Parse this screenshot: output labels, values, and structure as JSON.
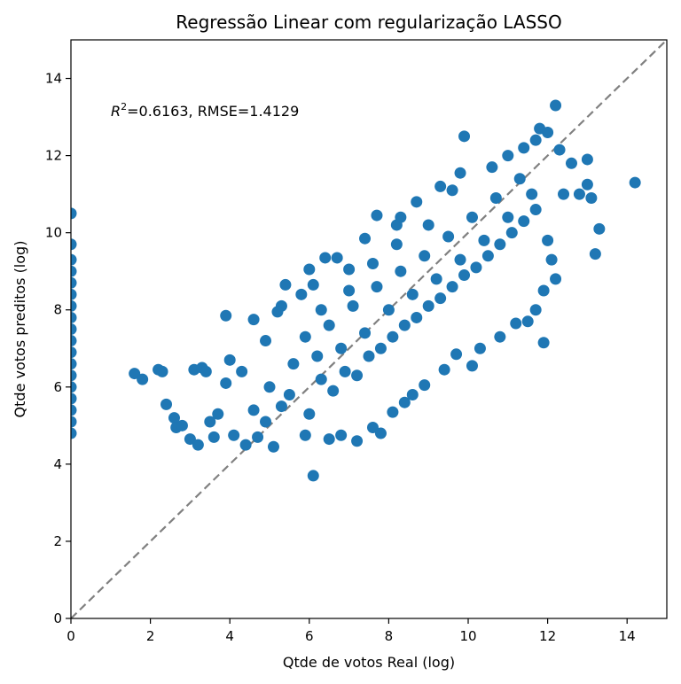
{
  "chart_data": {
    "type": "scatter",
    "title": "Regressão Linear com regularização LASSO",
    "xlabel": "Qtde de votos Real (log)",
    "ylabel": "Qtde votos preditos (log)",
    "xlim": [
      0,
      15
    ],
    "ylim": [
      0,
      15
    ],
    "xticks": [
      0,
      2,
      4,
      6,
      8,
      10,
      12,
      14
    ],
    "yticks": [
      0,
      2,
      4,
      6,
      8,
      10,
      12,
      14
    ],
    "xtick_labels": [
      "0",
      "2",
      "4",
      "6",
      "8",
      "10",
      "12",
      "14"
    ],
    "ytick_labels": [
      "0",
      "2",
      "4",
      "6",
      "8",
      "10",
      "12",
      "14"
    ],
    "grid": false,
    "marker_color": "#1f77b4",
    "reference_line": {
      "from": [
        0,
        0
      ],
      "to": [
        15,
        15
      ],
      "color": "#808080",
      "style": "dashed"
    },
    "annotation": {
      "r2_symbol": "R",
      "r2_exponent": "2",
      "text": "=0.6163, RMSE=1.4129"
    },
    "series": [
      {
        "points": [
          [
            0,
            10.5
          ],
          [
            0,
            9.7
          ],
          [
            0,
            9.3
          ],
          [
            0,
            9.0
          ],
          [
            0,
            8.7
          ],
          [
            0,
            8.4
          ],
          [
            0,
            8.1
          ],
          [
            0,
            7.8
          ],
          [
            0,
            7.5
          ],
          [
            0,
            7.2
          ],
          [
            0,
            6.9
          ],
          [
            0,
            6.6
          ],
          [
            0,
            6.3
          ],
          [
            0,
            6.0
          ],
          [
            0,
            5.7
          ],
          [
            0,
            5.4
          ],
          [
            0,
            5.1
          ],
          [
            0,
            4.8
          ],
          [
            1.6,
            6.35
          ],
          [
            1.8,
            6.2
          ],
          [
            2.2,
            6.45
          ],
          [
            2.3,
            6.4
          ],
          [
            2.4,
            5.55
          ],
          [
            2.6,
            5.2
          ],
          [
            2.65,
            4.95
          ],
          [
            2.8,
            5.0
          ],
          [
            3.0,
            4.65
          ],
          [
            3.1,
            6.45
          ],
          [
            3.2,
            4.5
          ],
          [
            3.3,
            6.5
          ],
          [
            3.4,
            6.4
          ],
          [
            3.5,
            5.1
          ],
          [
            3.6,
            4.7
          ],
          [
            3.7,
            5.3
          ],
          [
            3.9,
            6.1
          ],
          [
            4.0,
            6.7
          ],
          [
            4.1,
            4.75
          ],
          [
            4.3,
            6.4
          ],
          [
            4.4,
            4.5
          ],
          [
            4.6,
            5.4
          ],
          [
            4.7,
            4.7
          ],
          [
            4.9,
            5.1
          ],
          [
            3.9,
            7.85
          ],
          [
            4.6,
            7.75
          ],
          [
            4.9,
            7.2
          ],
          [
            5.1,
            4.45
          ],
          [
            5.3,
            8.1
          ],
          [
            5.2,
            7.95
          ],
          [
            5.4,
            8.65
          ],
          [
            5.8,
            8.4
          ],
          [
            5.9,
            4.75
          ],
          [
            6.1,
            3.7
          ],
          [
            6.0,
            9.05
          ],
          [
            6.1,
            8.65
          ],
          [
            6.4,
            9.35
          ],
          [
            6.5,
            4.65
          ],
          [
            6.7,
            9.35
          ],
          [
            6.8,
            4.75
          ],
          [
            7.0,
            9.05
          ],
          [
            7.2,
            4.6
          ],
          [
            7.4,
            9.85
          ],
          [
            7.6,
            4.95
          ],
          [
            7.7,
            10.45
          ],
          [
            7.8,
            4.8
          ],
          [
            8.2,
            10.2
          ],
          [
            8.1,
            5.35
          ],
          [
            8.3,
            10.4
          ],
          [
            8.4,
            5.6
          ],
          [
            8.7,
            10.8
          ],
          [
            8.6,
            5.8
          ],
          [
            9.0,
            10.2
          ],
          [
            8.9,
            6.05
          ],
          [
            9.3,
            11.2
          ],
          [
            9.4,
            6.45
          ],
          [
            9.6,
            11.1
          ],
          [
            9.8,
            11.55
          ],
          [
            9.9,
            12.5
          ],
          [
            9.7,
            6.85
          ],
          [
            10.1,
            6.55
          ],
          [
            10.3,
            7.0
          ],
          [
            10.6,
            11.7
          ],
          [
            10.8,
            7.3
          ],
          [
            11.0,
            12.0
          ],
          [
            11.2,
            7.65
          ],
          [
            11.4,
            12.2
          ],
          [
            11.5,
            7.7
          ],
          [
            11.7,
            12.4
          ],
          [
            11.8,
            12.7
          ],
          [
            12.0,
            12.6
          ],
          [
            12.2,
            13.3
          ],
          [
            11.9,
            8.5
          ],
          [
            12.1,
            9.3
          ],
          [
            12.2,
            8.8
          ],
          [
            12.4,
            11.0
          ],
          [
            12.6,
            11.8
          ],
          [
            12.8,
            11.0
          ],
          [
            13.0,
            11.9
          ],
          [
            13.3,
            10.1
          ],
          [
            13.1,
            10.9
          ],
          [
            13.2,
            9.45
          ],
          [
            13.0,
            11.25
          ],
          [
            14.2,
            11.3
          ],
          [
            11.9,
            7.15
          ],
          [
            11.7,
            8.0
          ],
          [
            12.0,
            9.8
          ],
          [
            12.3,
            12.15
          ],
          [
            5.0,
            6.0
          ],
          [
            5.3,
            5.5
          ],
          [
            5.6,
            6.6
          ],
          [
            5.5,
            5.8
          ],
          [
            5.9,
            7.3
          ],
          [
            6.0,
            5.3
          ],
          [
            6.2,
            6.8
          ],
          [
            6.3,
            6.2
          ],
          [
            6.5,
            7.6
          ],
          [
            6.6,
            5.9
          ],
          [
            6.8,
            7.0
          ],
          [
            6.9,
            6.4
          ],
          [
            7.1,
            8.1
          ],
          [
            7.2,
            6.3
          ],
          [
            7.4,
            7.4
          ],
          [
            7.5,
            6.8
          ],
          [
            7.7,
            8.6
          ],
          [
            7.8,
            7.0
          ],
          [
            8.0,
            8.0
          ],
          [
            8.1,
            7.3
          ],
          [
            8.3,
            9.0
          ],
          [
            8.4,
            7.6
          ],
          [
            8.6,
            8.4
          ],
          [
            8.7,
            7.8
          ],
          [
            8.9,
            9.4
          ],
          [
            9.0,
            8.1
          ],
          [
            9.2,
            8.8
          ],
          [
            9.3,
            8.3
          ],
          [
            9.5,
            9.9
          ],
          [
            9.6,
            8.6
          ],
          [
            9.8,
            9.3
          ],
          [
            9.9,
            8.9
          ],
          [
            10.1,
            10.4
          ],
          [
            10.2,
            9.1
          ],
          [
            10.4,
            9.8
          ],
          [
            10.5,
            9.4
          ],
          [
            10.7,
            10.9
          ],
          [
            10.8,
            9.7
          ],
          [
            11.0,
            10.4
          ],
          [
            11.1,
            10.0
          ],
          [
            11.3,
            11.4
          ],
          [
            11.4,
            10.3
          ],
          [
            11.6,
            11.0
          ],
          [
            11.7,
            10.6
          ],
          [
            6.3,
            8.0
          ],
          [
            7.0,
            8.5
          ],
          [
            7.6,
            9.2
          ],
          [
            8.2,
            9.7
          ]
        ]
      }
    ]
  }
}
